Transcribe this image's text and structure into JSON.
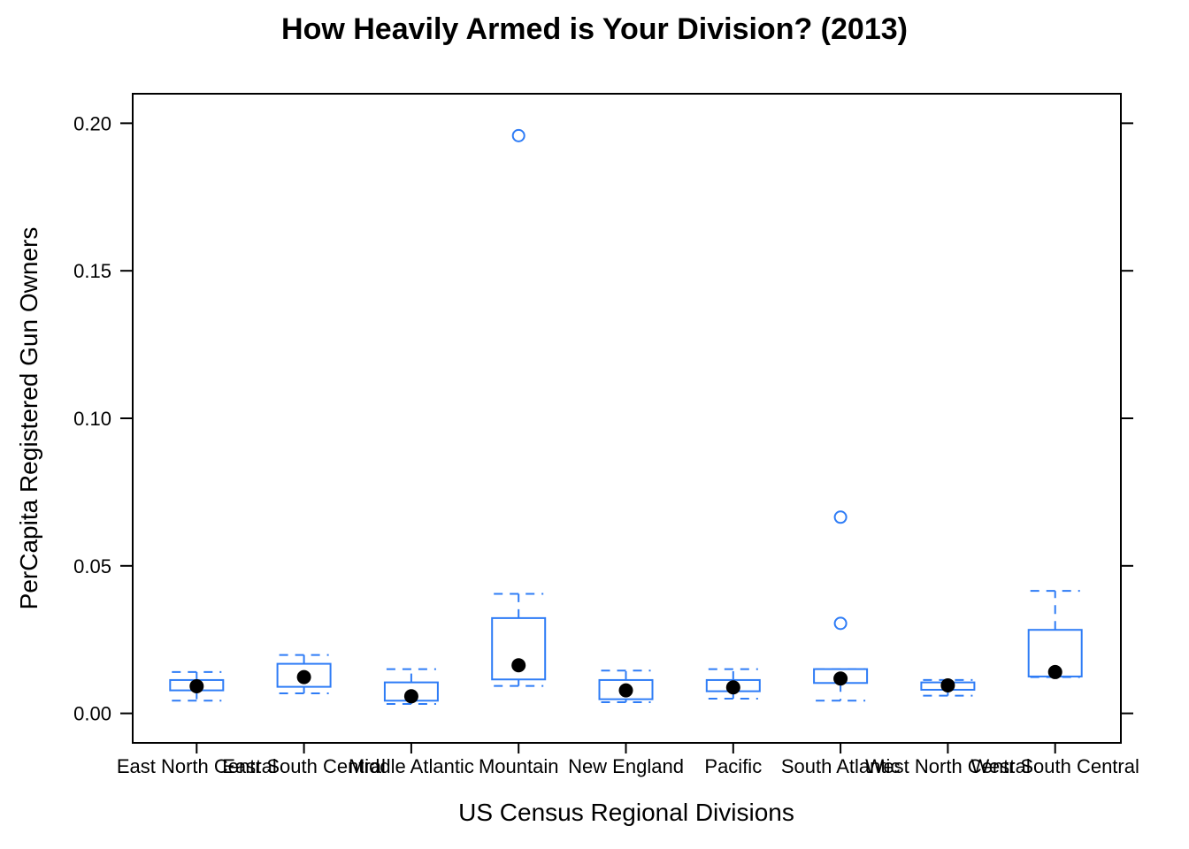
{
  "chart_data": {
    "type": "box",
    "title": "How Heavily Armed is Your Division? (2013)",
    "xlabel": "US Census Regional Divisions",
    "ylabel": "PerCapita Registered Gun Owners",
    "ylim": [
      -0.01,
      0.21
    ],
    "yticks": [
      "0.00",
      "0.05",
      "0.10",
      "0.15",
      "0.20"
    ],
    "grid": false,
    "colors": {
      "box": "#2e7cf6",
      "median": "#000000",
      "frame": "#000000"
    },
    "categories": [
      "East North Central",
      "East South Central",
      "Middle Atlantic",
      "Mountain",
      "New England",
      "Pacific",
      "South Atlantic",
      "West North Central",
      "West South Central"
    ],
    "boxes": [
      {
        "whisker_low": 0.0043,
        "q1": 0.0078,
        "median": 0.0092,
        "q3": 0.0113,
        "whisker_high": 0.014,
        "outliers": []
      },
      {
        "whisker_low": 0.0068,
        "q1": 0.009,
        "median": 0.0123,
        "q3": 0.0168,
        "whisker_high": 0.0198,
        "outliers": []
      },
      {
        "whisker_low": 0.0032,
        "q1": 0.0043,
        "median": 0.0058,
        "q3": 0.0105,
        "whisker_high": 0.015,
        "outliers": []
      },
      {
        "whisker_low": 0.0093,
        "q1": 0.0115,
        "median": 0.0163,
        "q3": 0.0323,
        "whisker_high": 0.0405,
        "outliers": [
          0.1958
        ]
      },
      {
        "whisker_low": 0.0038,
        "q1": 0.0048,
        "median": 0.0078,
        "q3": 0.0113,
        "whisker_high": 0.0145,
        "outliers": []
      },
      {
        "whisker_low": 0.005,
        "q1": 0.0075,
        "median": 0.0088,
        "q3": 0.0113,
        "whisker_high": 0.015,
        "outliers": []
      },
      {
        "whisker_low": 0.0043,
        "q1": 0.0103,
        "median": 0.0118,
        "q3": 0.015,
        "whisker_high": 0.015,
        "outliers": [
          0.0305,
          0.0665
        ]
      },
      {
        "whisker_low": 0.006,
        "q1": 0.008,
        "median": 0.0095,
        "q3": 0.0105,
        "whisker_high": 0.0113,
        "outliers": []
      },
      {
        "whisker_low": 0.0123,
        "q1": 0.0125,
        "median": 0.014,
        "q3": 0.0283,
        "whisker_high": 0.0415,
        "outliers": []
      }
    ]
  }
}
